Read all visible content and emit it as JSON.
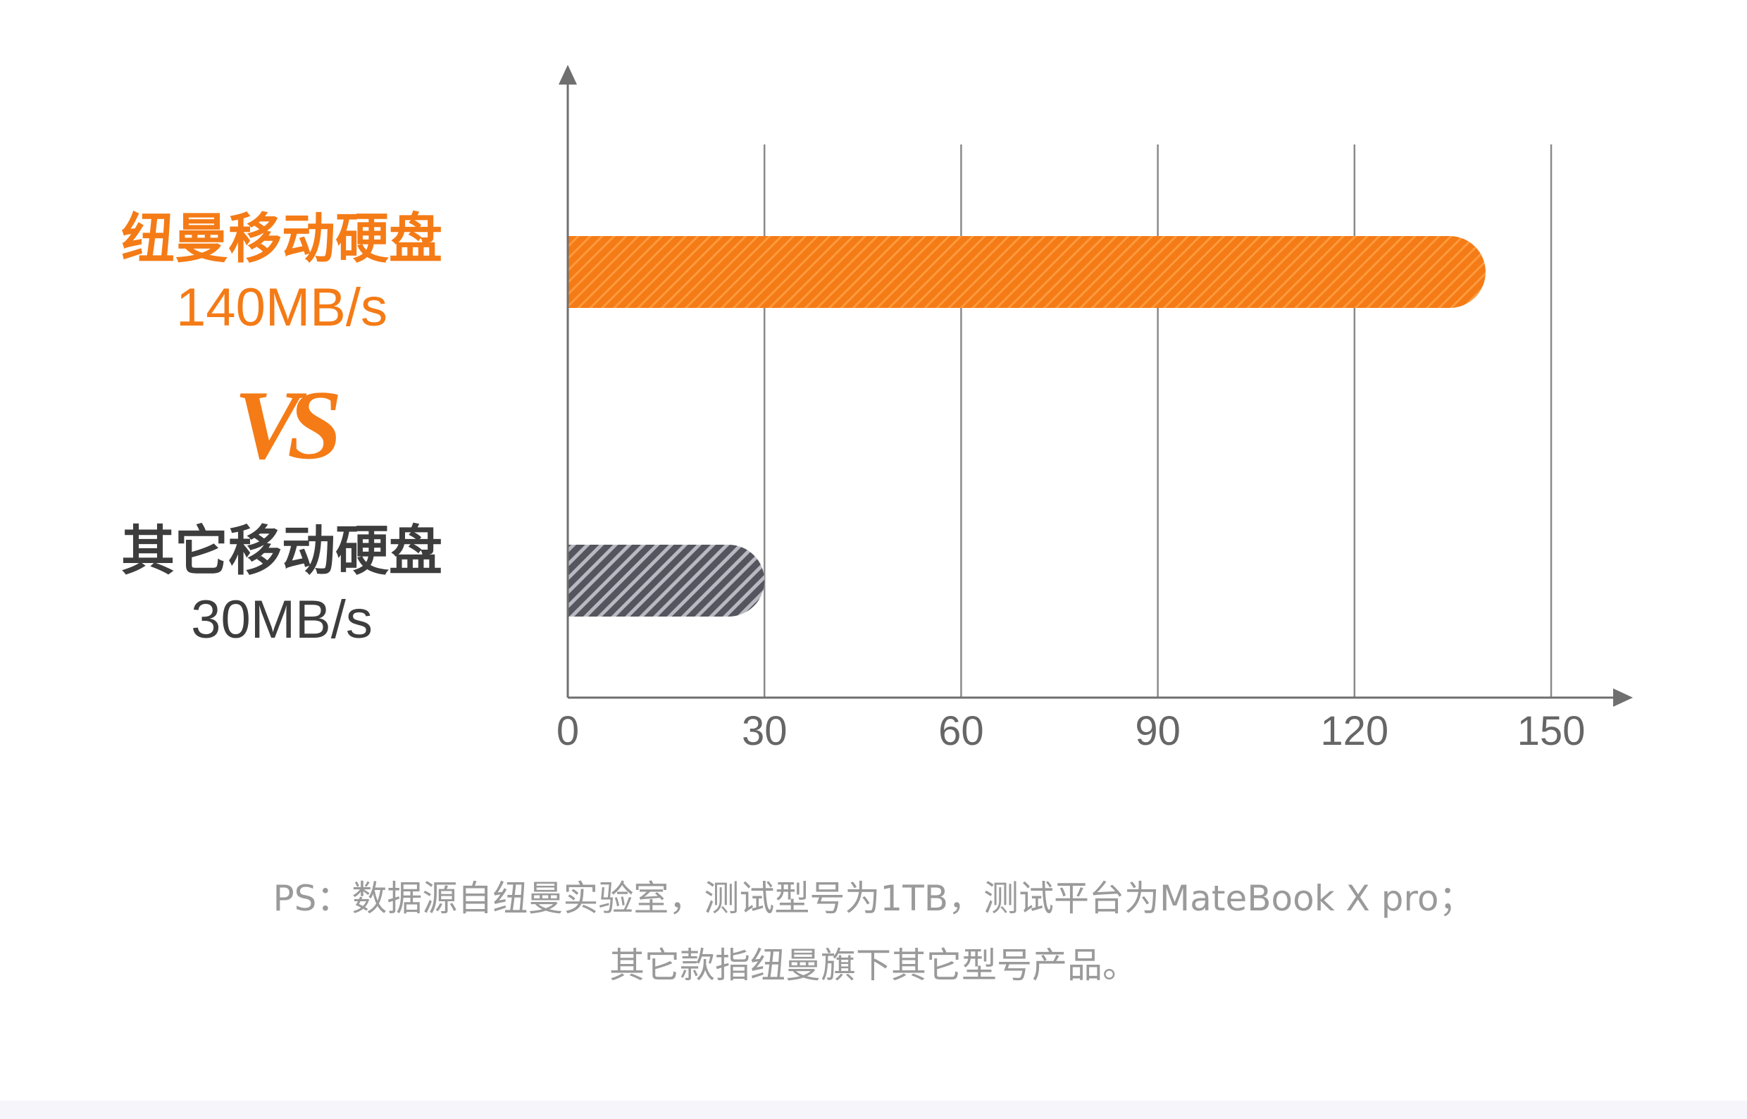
{
  "labels": {
    "primary_name": "纽曼移动硬盘",
    "primary_speed": "140MB/s",
    "vs": "VS",
    "secondary_name": "其它移动硬盘",
    "secondary_speed": "30MB/s"
  },
  "footnote": {
    "line1": "PS：数据源自纽曼实验室，测试型号为1TB，测试平台为MateBook X pro；",
    "line2": "其它款指纽曼旗下其它型号产品。"
  },
  "colors": {
    "primary": "#f47b16",
    "primary_stripe": "#ff9a3c",
    "secondary": "#55555f",
    "secondary_stripe": "#b9b9c2",
    "axis": "#6f6f6f",
    "grid": "#8a8a8a",
    "tick_text": "#666666",
    "footnote_text": "#9a9a9a"
  },
  "chart_data": {
    "type": "bar",
    "orientation": "horizontal",
    "categories": [
      "纽曼移动硬盘",
      "其它移动硬盘"
    ],
    "values": [
      140,
      30
    ],
    "unit": "MB/s",
    "xlim": [
      0,
      150
    ],
    "xticks": [
      "0",
      "30",
      "60",
      "90",
      "120",
      "150"
    ],
    "grid": true
  }
}
